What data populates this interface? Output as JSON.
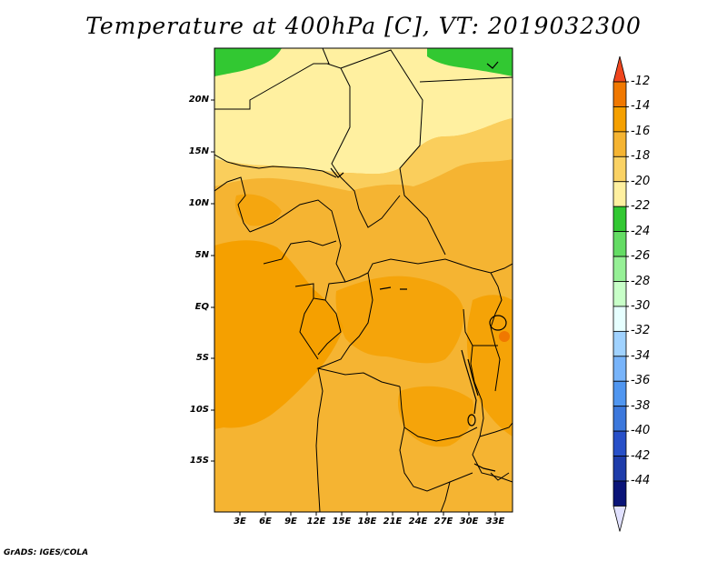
{
  "map": {
    "title": "Temperature at 400hPa [C], VT: 2019032300",
    "lat_labels": [
      "20N",
      "15N",
      "10N",
      "5N",
      "EQ",
      "5S",
      "10S",
      "15S"
    ],
    "lon_labels": [
      "3E",
      "6E",
      "9E",
      "12E",
      "15E",
      "18E",
      "21E",
      "24E",
      "27E",
      "30E",
      "33E"
    ],
    "footer": "GrADS: IGES/COLA",
    "colorbar": {
      "labels": [
        "-12",
        "-14",
        "-16",
        "-18",
        "-20",
        "-22",
        "-24",
        "-26",
        "-28",
        "-30",
        "-32",
        "-34",
        "-36",
        "-38",
        "-40",
        "-42",
        "-44"
      ],
      "colors": [
        "#f0461e",
        "#f07800",
        "#f5a000",
        "#f5b432",
        "#fad264",
        "#fff0a0",
        "#32c832",
        "#64dc64",
        "#96f096",
        "#c8ffc8",
        "#e6ffff",
        "#a0d2ff",
        "#78b4fa",
        "#5096f0",
        "#3c78dc",
        "#2850c8",
        "#1e3caa",
        "#0a1478"
      ],
      "low_end_color": "#e1e1ff"
    },
    "field_colors": {
      "very_warm": "#f5a000",
      "warm": "#f5b432",
      "mild": "#fad264",
      "cool": "#fff0a0",
      "green": "#32c832"
    }
  }
}
